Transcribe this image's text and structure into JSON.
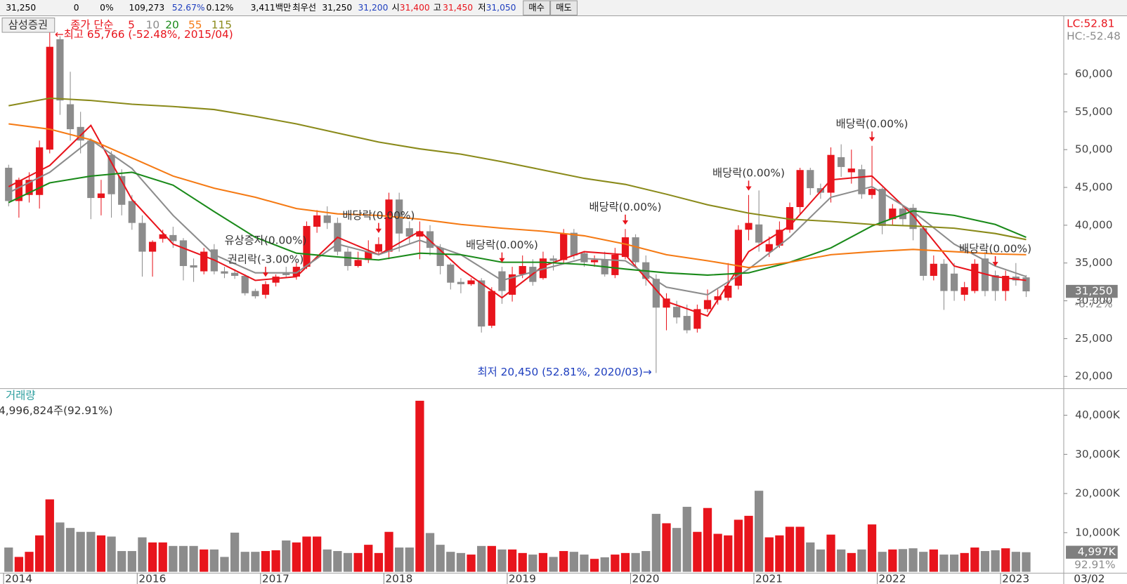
{
  "quote_bar": [
    {
      "text": "31,250"
    },
    {
      "text": "0"
    },
    {
      "text": "0%"
    },
    {
      "text": "109,273"
    },
    {
      "text": "52.67%",
      "color": "#1f3fbf"
    },
    {
      "text": "0.12%"
    },
    {
      "text": "3,411백만"
    },
    {
      "text": "최우선"
    },
    {
      "text": "31,250"
    },
    {
      "text": "31,200",
      "color": "#1f3fbf"
    },
    {
      "text": "시"
    },
    {
      "text": "31,400",
      "color": "#e8141c"
    },
    {
      "text": "고"
    },
    {
      "text": "31,450",
      "color": "#e8141c"
    },
    {
      "text": "저"
    },
    {
      "text": "31,050",
      "color": "#1f3fbf"
    }
  ],
  "buttons": [
    "매수",
    "매도"
  ],
  "chart_data": [
    {
      "type": "candlestick",
      "instrument": "삼성증권",
      "up_color": "#e8141c",
      "down_color": "#8c8c8c",
      "x": [
        "2014/12",
        "2015/01",
        "2015/02",
        "2015/03",
        "2015/04",
        "2015/05",
        "2015/06",
        "2015/07",
        "2015/08",
        "2015/09",
        "2015/10",
        "2015/11",
        "2015/12",
        "2016/01",
        "2016/02",
        "2016/03",
        "2016/04",
        "2016/05",
        "2016/06",
        "2016/07",
        "2016/08",
        "2016/09",
        "2016/10",
        "2016/11",
        "2016/12",
        "2017/01",
        "2017/02",
        "2017/03",
        "2017/04",
        "2017/05",
        "2017/06",
        "2017/07",
        "2017/08",
        "2017/09",
        "2017/10",
        "2017/11",
        "2017/12",
        "2018/01",
        "2018/02",
        "2018/03",
        "2018/04",
        "2018/05",
        "2018/06",
        "2018/07",
        "2018/08",
        "2018/09",
        "2018/10",
        "2018/11",
        "2018/12",
        "2019/01",
        "2019/02",
        "2019/03",
        "2019/04",
        "2019/05",
        "2019/06",
        "2019/07",
        "2019/08",
        "2019/09",
        "2019/10",
        "2019/11",
        "2019/12",
        "2020/01",
        "2020/02",
        "2020/03",
        "2020/04",
        "2020/05",
        "2020/06",
        "2020/07",
        "2020/08",
        "2020/09",
        "2020/10",
        "2020/11",
        "2020/12",
        "2021/01",
        "2021/02",
        "2021/03",
        "2021/04",
        "2021/05",
        "2021/06",
        "2021/07",
        "2021/08",
        "2021/09",
        "2021/10",
        "2021/11",
        "2021/12",
        "2022/01",
        "2022/02",
        "2022/03",
        "2022/04",
        "2022/05",
        "2022/06",
        "2022/07",
        "2022/08",
        "2022/09",
        "2022/10",
        "2022/11",
        "2022/12",
        "2023/01",
        "2023/02",
        "2023/03"
      ],
      "open": [
        47600,
        43200,
        44000,
        44000,
        50000,
        64600,
        56000,
        53000,
        51200,
        43600,
        49300,
        46500,
        43200,
        40300,
        36500,
        38200,
        38700,
        38000,
        34700,
        33900,
        36800,
        33900,
        33700,
        33300,
        31300,
        30800,
        32400,
        33700,
        33200,
        34500,
        39800,
        41300,
        40300,
        36500,
        34600,
        35400,
        36500,
        36500,
        43400,
        39600,
        38500,
        39200,
        37000,
        34800,
        32500,
        32200,
        32700,
        26700,
        33900,
        30800,
        33500,
        34500,
        33000,
        35600,
        35400,
        39000,
        36300,
        35100,
        35400,
        33400,
        35800,
        38400,
        35100,
        32900,
        29100,
        29200,
        28000,
        26300,
        28900,
        30100,
        30400,
        32000,
        39400,
        40100,
        36500,
        37300,
        39400,
        42400,
        47300,
        44900,
        44300,
        49000,
        47000,
        47400,
        44000,
        44800,
        40800,
        42200,
        42300,
        39600,
        33300,
        34900,
        33600,
        30800,
        31300,
        35600,
        33400,
        31300,
        33200,
        33100
      ],
      "high": [
        48000,
        46300,
        47000,
        51200,
        65766,
        65000,
        60300,
        55000,
        51500,
        46000,
        49800,
        47400,
        44000,
        41300,
        38000,
        39400,
        39800,
        38300,
        35600,
        37000,
        37500,
        34500,
        34200,
        33500,
        31600,
        32600,
        33500,
        34500,
        35000,
        40500,
        42000,
        42500,
        41000,
        37000,
        36500,
        38000,
        38400,
        44300,
        44300,
        40500,
        40500,
        40000,
        37500,
        35000,
        33000,
        33000,
        33000,
        31800,
        34500,
        34500,
        36000,
        35500,
        36500,
        36000,
        39500,
        39500,
        36600,
        36000,
        36500,
        37000,
        39500,
        38800,
        36000,
        33500,
        31000,
        30000,
        29500,
        29500,
        31500,
        31500,
        35000,
        40000,
        44000,
        44600,
        38500,
        40500,
        43000,
        47600,
        47600,
        45500,
        50300,
        50700,
        50000,
        48000,
        50500,
        45000,
        42800,
        42500,
        42800,
        40000,
        36000,
        35500,
        35000,
        32500,
        35500,
        36500,
        34000,
        34000,
        35000,
        33400
      ],
      "low": [
        42500,
        41000,
        43000,
        42200,
        49500,
        54600,
        51200,
        49500,
        40800,
        41300,
        41000,
        41300,
        39400,
        33200,
        33200,
        37700,
        37000,
        32700,
        32500,
        33500,
        33500,
        33000,
        32900,
        30700,
        30300,
        30300,
        31900,
        33000,
        32800,
        34200,
        39000,
        39500,
        36000,
        34000,
        34400,
        35000,
        36000,
        35500,
        36500,
        37500,
        35500,
        36000,
        33500,
        31500,
        31000,
        32000,
        25800,
        26400,
        29600,
        29900,
        33000,
        32000,
        32800,
        34000,
        35000,
        35500,
        34500,
        34500,
        33200,
        33000,
        35500,
        34500,
        32000,
        20450,
        26100,
        27000,
        25700,
        25800,
        28500,
        29500,
        30000,
        31500,
        38000,
        36500,
        35800,
        37000,
        39000,
        41500,
        44000,
        43500,
        43000,
        46400,
        45500,
        43500,
        43500,
        38800,
        40000,
        40000,
        38000,
        32700,
        32700,
        28800,
        30000,
        30000,
        31000,
        30600,
        30000,
        30000,
        32000,
        30500
      ],
      "close": [
        43200,
        46000,
        46000,
        50300,
        63600,
        56500,
        52700,
        51200,
        43600,
        44200,
        44100,
        42700,
        40300,
        36500,
        37800,
        38800,
        37900,
        34600,
        34400,
        36500,
        33900,
        33600,
        33300,
        31000,
        30600,
        32200,
        33200,
        33400,
        34500,
        39900,
        41300,
        40300,
        36500,
        34600,
        35400,
        36500,
        37500,
        43400,
        38900,
        38500,
        39200,
        37000,
        34600,
        32400,
        32200,
        32700,
        26600,
        31300,
        31300,
        33500,
        34600,
        32500,
        35600,
        35300,
        38900,
        36000,
        35100,
        35400,
        33500,
        36100,
        38400,
        35100,
        32900,
        29100,
        30300,
        27800,
        26100,
        28900,
        30100,
        30600,
        32000,
        39400,
        40300,
        37700,
        37500,
        39400,
        42400,
        47300,
        44900,
        44300,
        49300,
        47700,
        47500,
        44100,
        44800,
        39900,
        42200,
        40800,
        39500,
        33300,
        34900,
        31300,
        31300,
        31800,
        34900,
        31300,
        31300,
        33300,
        32700,
        31250
      ],
      "ylim": [
        18480,
        67700
      ],
      "yticks": [
        {
          "value": 20000,
          "label": "20,000"
        },
        {
          "value": 25000,
          "label": "25,000"
        },
        {
          "value": 30000,
          "label": "30,000"
        },
        {
          "value": 35000,
          "label": "35,000"
        },
        {
          "value": 40000,
          "label": "40,000"
        },
        {
          "value": 45000,
          "label": "45,000"
        },
        {
          "value": 50000,
          "label": "50,000"
        },
        {
          "value": 55000,
          "label": "55,000"
        },
        {
          "value": 60000,
          "label": "60,000"
        }
      ],
      "moving_averages": {
        "label": "종가 단순",
        "x": [
          "2014/12",
          "2015/04",
          "2015/08",
          "2015/12",
          "2016/04",
          "2016/08",
          "2016/12",
          "2017/04",
          "2017/08",
          "2017/12",
          "2018/04",
          "2018/08",
          "2018/12",
          "2019/04",
          "2019/08",
          "2019/12",
          "2020/04",
          "2020/08",
          "2020/12",
          "2021/04",
          "2021/08",
          "2021/12",
          "2022/04",
          "2022/08",
          "2022/12",
          "2023/03"
        ],
        "series": [
          {
            "name": "5",
            "color": "#e8141c",
            "values": [
              45100,
              47900,
              53200,
              43400,
              37500,
              35400,
              32700,
              33200,
              38400,
              36100,
              39200,
              34200,
              30400,
              34600,
              36500,
              36100,
              29900,
              28000,
              36500,
              39900,
              46000,
              46500,
              41300,
              34600,
              33200,
              32700
            ]
          },
          {
            "name": "10",
            "color": "#8c8c8c",
            "values": [
              44300,
              47000,
              51300,
              47500,
              41300,
              36100,
              33700,
              33700,
              37500,
              36100,
              38000,
              36100,
              32700,
              34200,
              35600,
              35300,
              31800,
              30800,
              34200,
              38400,
              43700,
              45100,
              41800,
              37500,
              34600,
              33200
            ]
          },
          {
            "name": "20",
            "color": "#1a8a1a",
            "values": [
              43000,
              45600,
              46500,
              47000,
              45300,
              41800,
              38400,
              36300,
              35800,
              35400,
              36300,
              36100,
              35100,
              35100,
              34800,
              34200,
              33700,
              33400,
              33700,
              35100,
              37000,
              39900,
              41900,
              41300,
              40100,
              38400
            ]
          },
          {
            "name": "55",
            "color": "#f57a14",
            "values": [
              53400,
              52700,
              51300,
              48900,
              46500,
              44900,
              43700,
              42200,
              41500,
              41300,
              40800,
              40100,
              39600,
              39200,
              38600,
              37500,
              36100,
              35300,
              34400,
              35100,
              36100,
              36500,
              36800,
              36500,
              36200,
              36100
            ]
          },
          {
            "name": "115",
            "color": "#8a8a1a",
            "values": [
              55800,
              56800,
              56500,
              56000,
              55700,
              55300,
              54400,
              53400,
              52200,
              51000,
              50100,
              49400,
              48400,
              47300,
              46200,
              45400,
              44100,
              42700,
              41600,
              40800,
              40500,
              40100,
              39900,
              39600,
              38900,
              38100
            ]
          }
        ]
      },
      "annotations": [
        {
          "text": "권리락(-3.00%)",
          "x": "2017/01"
        },
        {
          "text": "유상증자(0.00%)",
          "x": "2017/01"
        },
        {
          "text": "배당락(0.00%)",
          "x": "2017/12"
        },
        {
          "text": "배당락(0.00%)",
          "x": "2018/12"
        },
        {
          "text": "배당락(0.00%)",
          "x": "2019/12"
        },
        {
          "text": "배당락(0.00%)",
          "x": "2020/12"
        },
        {
          "text": "배당락(0.00%)",
          "x": "2021/12"
        },
        {
          "text": "배당락(0.00%)",
          "x": "2022/12"
        }
      ],
      "max_label": {
        "text": "←최고 65,766 (-52.48%, 2015/04)",
        "x": "2015/04"
      },
      "min_label": {
        "text": "최저 20,450 (52.81%, 2020/03)→",
        "x": "2020/03"
      },
      "lc_label": "LC:52.81",
      "hc_label": "HC:-52.48",
      "last_price": {
        "value": 31250,
        "label": "31,250"
      },
      "last_change": "-6.72%"
    },
    {
      "type": "bar",
      "title": "거래량",
      "subtitle": "4,996,824주(92.91%)",
      "values": [
        6200,
        3800,
        5100,
        9300,
        18500,
        12600,
        11200,
        10200,
        10200,
        9300,
        9000,
        5300,
        5300,
        8800,
        7500,
        7500,
        6600,
        6600,
        6600,
        5700,
        5700,
        3800,
        10000,
        5100,
        5100,
        5300,
        5500,
        8000,
        7500,
        9000,
        9000,
        5700,
        5300,
        4800,
        4800,
        6900,
        4800,
        10200,
        6200,
        6200,
        43700,
        9900,
        6900,
        5100,
        4800,
        4400,
        6600,
        6600,
        5700,
        5700,
        4800,
        4400,
        4800,
        3800,
        5300,
        5100,
        4400,
        3300,
        3700,
        4400,
        4800,
        4800,
        5300,
        14800,
        12400,
        11200,
        16600,
        10200,
        16300,
        9700,
        9300,
        13300,
        14300,
        20700,
        8800,
        9300,
        11500,
        11500,
        7500,
        5700,
        9500,
        5700,
        4800,
        5700,
        12100,
        5100,
        5700,
        5800,
        6000,
        5100,
        5700,
        4400,
        4400,
        4800,
        6200,
        5300,
        5500,
        6000,
        5100,
        4997
      ],
      "ylim": [
        0,
        46800
      ],
      "yticks": [
        {
          "value": 10000,
          "label": "10,000K"
        },
        {
          "value": 20000,
          "label": "20,000K"
        },
        {
          "value": 30000,
          "label": "30,000K"
        },
        {
          "value": 40000,
          "label": "40,000K"
        }
      ],
      "xticks": [
        {
          "value": "2014/12",
          "label": "2014"
        },
        {
          "value": "2016/01",
          "label": "2016"
        },
        {
          "value": "2017/01",
          "label": "2017"
        },
        {
          "value": "2018/01",
          "label": "2018"
        },
        {
          "value": "2019/01",
          "label": "2019"
        },
        {
          "value": "2020/01",
          "label": "2020"
        },
        {
          "value": "2021/01",
          "label": "2021"
        },
        {
          "value": "2022/01",
          "label": "2022"
        },
        {
          "value": "2023/01",
          "label": "2023"
        }
      ],
      "last_value": {
        "value": 4997,
        "label": "4,997K"
      },
      "last_ratio": "92.91%",
      "date_label": "03/02"
    }
  ]
}
